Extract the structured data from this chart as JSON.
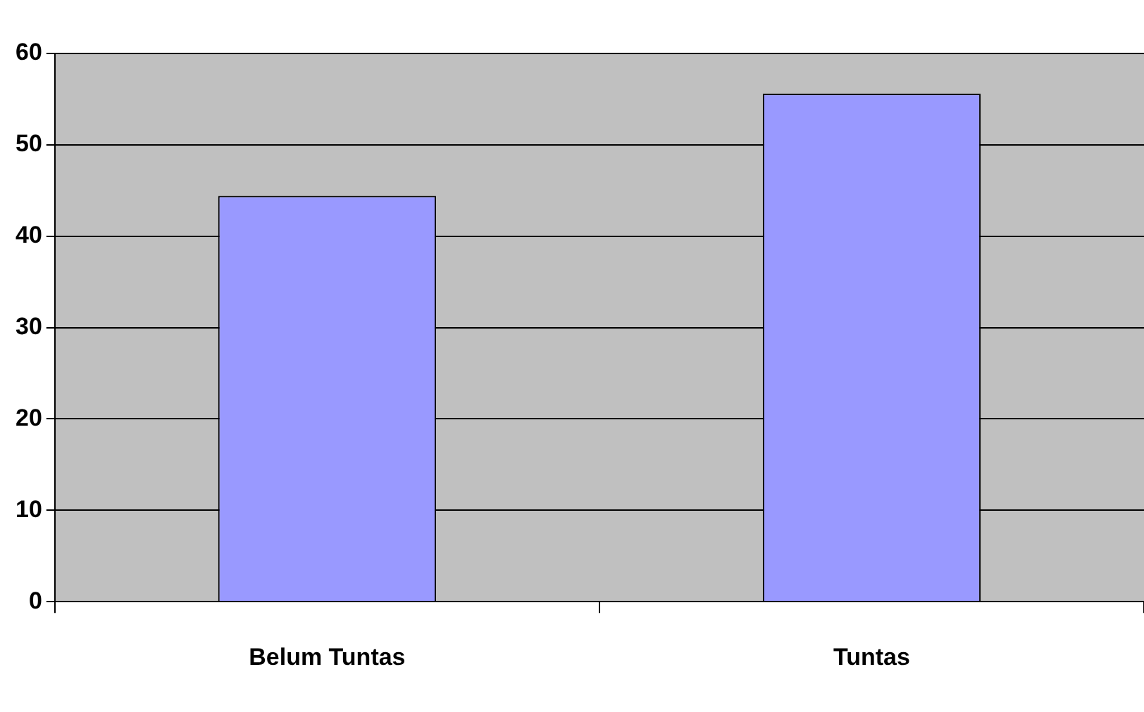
{
  "chart_data": {
    "type": "bar",
    "categories": [
      "Belum Tuntas",
      "Tuntas"
    ],
    "values": [
      44.4,
      55.6
    ],
    "color": "#9999ff",
    "ylim": [
      0,
      60
    ],
    "yticks": [
      0,
      10,
      20,
      30,
      40,
      50,
      60
    ],
    "grid": "y"
  }
}
